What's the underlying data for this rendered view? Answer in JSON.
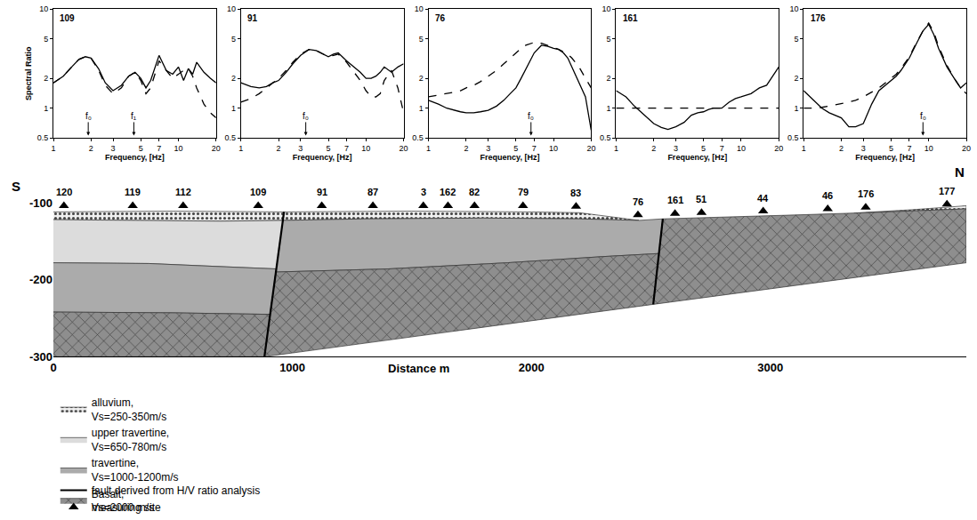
{
  "chart_data": [
    {
      "type": "line",
      "title": "109",
      "log": true,
      "grid": false,
      "xlabel": "Frequency, [Hz]",
      "ylabel": "Spectral Ratio",
      "xlim": [
        1,
        20
      ],
      "xticks": [
        1,
        2,
        3,
        5,
        7,
        10,
        20
      ],
      "ylim": [
        0.5,
        10
      ],
      "yticks": [
        0.5,
        1,
        2,
        5,
        10
      ],
      "x": [
        1,
        1.2,
        1.4,
        1.6,
        1.8,
        2,
        2.3,
        2.6,
        3,
        3.5,
        4,
        4.5,
        5,
        5.5,
        6,
        7,
        8,
        9,
        10,
        11,
        12,
        13,
        14,
        16,
        18,
        20
      ],
      "series": [
        {
          "line_style": "solid",
          "color": "#000000",
          "values": [
            1.8,
            2.1,
            2.6,
            3.1,
            3.3,
            3.2,
            2.5,
            1.8,
            1.5,
            1.7,
            2.1,
            2.3,
            2.0,
            1.6,
            1.9,
            3.4,
            2.4,
            2.2,
            2.6,
            1.9,
            2.5,
            2.2,
            2.9,
            2.3,
            2.0,
            1.8
          ]
        },
        {
          "line_style": "dashed",
          "color": "#000000",
          "values": [
            1.8,
            2.1,
            2.6,
            3.1,
            3.3,
            3.2,
            2.4,
            1.7,
            1.4,
            1.6,
            2.1,
            2.3,
            1.9,
            1.4,
            1.6,
            3.0,
            2.4,
            2.0,
            2.2,
            2.4,
            2.5,
            2.1,
            1.6,
            1.1,
            0.9,
            0.8
          ]
        }
      ],
      "annotations": [
        {
          "text": "f₀",
          "x": 1.9
        },
        {
          "text": "f₁",
          "x": 4.4
        }
      ]
    },
    {
      "type": "line",
      "title": "91",
      "log": true,
      "grid": false,
      "xlabel": "Frequency, [Hz]",
      "xlim": [
        1,
        20
      ],
      "xticks": [
        1,
        2,
        3,
        5,
        7,
        10,
        20
      ],
      "ylim": [
        0.5,
        10
      ],
      "yticks": [
        0.5,
        1,
        2,
        5,
        10
      ],
      "x": [
        1,
        1.2,
        1.4,
        1.6,
        1.8,
        2,
        2.3,
        2.6,
        3,
        3.5,
        4,
        4.5,
        5,
        5.5,
        6,
        7,
        8,
        9,
        10,
        11,
        12,
        13,
        14,
        16,
        18,
        20
      ],
      "series": [
        {
          "line_style": "solid",
          "color": "#000000",
          "values": [
            1.8,
            1.65,
            1.6,
            1.65,
            1.8,
            1.9,
            2.3,
            2.8,
            3.4,
            3.9,
            3.8,
            3.5,
            3.3,
            3.5,
            3.6,
            3.0,
            2.6,
            2.3,
            2.0,
            2.0,
            2.1,
            2.3,
            2.6,
            2.3,
            2.6,
            2.8
          ]
        },
        {
          "line_style": "dashed",
          "color": "#000000",
          "values": [
            1.15,
            1.25,
            1.4,
            1.6,
            1.8,
            2.0,
            2.4,
            2.9,
            3.5,
            3.9,
            3.8,
            3.5,
            3.3,
            3.4,
            3.5,
            2.9,
            2.3,
            1.9,
            1.5,
            1.3,
            1.3,
            1.4,
            1.9,
            2.4,
            1.6,
            0.9
          ]
        }
      ],
      "annotations": [
        {
          "text": "f₀",
          "x": 3.3
        }
      ]
    },
    {
      "type": "line",
      "title": "76",
      "log": true,
      "grid": false,
      "xlabel": "Frequency, [Hz]",
      "xlim": [
        1,
        20
      ],
      "xticks": [
        1,
        2,
        3,
        5,
        7,
        10,
        20
      ],
      "ylim": [
        0.5,
        10
      ],
      "yticks": [
        0.5,
        1,
        2,
        5,
        10
      ],
      "x": [
        1,
        1.2,
        1.4,
        1.6,
        1.8,
        2,
        2.3,
        2.6,
        3,
        3.5,
        4,
        4.5,
        5,
        5.5,
        6,
        7,
        8,
        9,
        10,
        11,
        12,
        13,
        14,
        16,
        18,
        20
      ],
      "series": [
        {
          "line_style": "solid",
          "color": "#000000",
          "values": [
            1.2,
            1.1,
            1.0,
            0.95,
            0.92,
            0.9,
            0.9,
            0.92,
            0.95,
            1.05,
            1.2,
            1.4,
            1.6,
            2.0,
            2.5,
            3.6,
            4.3,
            4.2,
            4.0,
            3.9,
            3.6,
            3.2,
            2.6,
            1.8,
            1.3,
            0.6
          ]
        },
        {
          "line_style": "dashed",
          "color": "#000000",
          "values": [
            1.3,
            1.35,
            1.4,
            1.45,
            1.5,
            1.6,
            1.7,
            1.85,
            2.1,
            2.4,
            2.8,
            3.2,
            3.6,
            4.0,
            4.3,
            4.6,
            4.5,
            4.3,
            4.1,
            3.9,
            3.7,
            3.5,
            3.2,
            2.6,
            2.0,
            1.6
          ]
        }
      ],
      "annotations": [
        {
          "text": "f₀",
          "x": 6.6
        }
      ]
    },
    {
      "type": "line",
      "title": "161",
      "log": true,
      "grid": false,
      "xlabel": "Frequency, [Hz]",
      "xlim": [
        1,
        20
      ],
      "xticks": [
        1,
        2,
        3,
        5,
        7,
        10,
        20
      ],
      "ylim": [
        0.5,
        10
      ],
      "yticks": [
        0.5,
        1,
        2,
        5,
        10
      ],
      "x": [
        1,
        1.2,
        1.4,
        1.6,
        1.8,
        2,
        2.3,
        2.6,
        3,
        3.5,
        4,
        4.5,
        5,
        5.5,
        6,
        7,
        8,
        9,
        10,
        11,
        12,
        13,
        14,
        16,
        18,
        20
      ],
      "series": [
        {
          "line_style": "solid",
          "color": "#000000",
          "values": [
            1.5,
            1.3,
            1.05,
            0.9,
            0.78,
            0.7,
            0.64,
            0.61,
            0.65,
            0.72,
            0.85,
            0.9,
            0.92,
            0.97,
            1.0,
            1.0,
            1.15,
            1.25,
            1.3,
            1.35,
            1.4,
            1.5,
            1.6,
            1.7,
            2.1,
            2.6
          ]
        },
        {
          "line_style": "dashed",
          "color": "#000000",
          "values": [
            1,
            1,
            1,
            1,
            1,
            1,
            1,
            1,
            1,
            1,
            1,
            1,
            1,
            1,
            1,
            1,
            1,
            1,
            1,
            1,
            1,
            1,
            1,
            1,
            1,
            1
          ]
        }
      ]
    },
    {
      "type": "line",
      "title": "176",
      "log": true,
      "grid": false,
      "xlabel": "Frequency, [Hz]",
      "xlim": [
        1,
        20
      ],
      "xticks": [
        1,
        2,
        3,
        5,
        7,
        10,
        20
      ],
      "ylim": [
        0.5,
        10
      ],
      "yticks": [
        0.5,
        1,
        2,
        5,
        10
      ],
      "x": [
        1,
        1.2,
        1.4,
        1.6,
        1.8,
        2,
        2.3,
        2.6,
        3,
        3.5,
        4,
        4.5,
        5,
        5.5,
        6,
        7,
        8,
        9,
        10,
        11,
        12,
        13,
        14,
        16,
        18,
        20
      ],
      "series": [
        {
          "line_style": "solid",
          "color": "#000000",
          "values": [
            1.5,
            1.2,
            1.0,
            0.9,
            0.85,
            0.8,
            0.65,
            0.65,
            0.7,
            1.1,
            1.5,
            1.7,
            1.9,
            2.1,
            2.4,
            3.2,
            4.5,
            6.0,
            7.0,
            5.5,
            4.0,
            3.2,
            2.6,
            2.0,
            1.6,
            1.8
          ]
        },
        {
          "line_style": "dashed",
          "color": "#000000",
          "values": [
            1.0,
            1.0,
            1.02,
            1.05,
            1.08,
            1.1,
            1.15,
            1.2,
            1.3,
            1.45,
            1.6,
            1.8,
            2.0,
            2.2,
            2.5,
            3.3,
            4.6,
            6.0,
            7.2,
            5.8,
            4.2,
            3.3,
            2.7,
            2.0,
            1.6,
            1.4
          ]
        }
      ],
      "annotations": [
        {
          "text": "f₀",
          "x": 9
        }
      ]
    },
    {
      "type": "area",
      "grid": false,
      "legend": "bottom",
      "xlabel": "Distance m",
      "xlim": [
        0,
        3820
      ],
      "xticks": [
        0,
        1000,
        2000,
        3000
      ],
      "ylim": [
        -300,
        -100
      ],
      "yticks": [
        -100,
        -200,
        -300
      ],
      "annotations": [
        {
          "text": "S",
          "x": 0
        },
        {
          "text": "N",
          "x": 3820
        }
      ],
      "series": [
        {
          "name": "alluvium, Vs=250-350m/s",
          "type": "area",
          "color": "#f0f0f0",
          "marker": "dots",
          "x": [
            0,
            500,
            963,
            961,
            700,
            300,
            0,
            null,
            963,
            1500,
            2000,
            2200,
            2450,
            2200,
            1800,
            1300,
            961,
            null,
            3350,
            3600,
            3820,
            3820,
            3600,
            3400
          ],
          "values": [
            -112,
            -111,
            -112,
            -123,
            -124,
            -123,
            -122,
            null,
            -112,
            -111,
            -112,
            -113,
            -123,
            -121,
            -120,
            -121,
            -123,
            null,
            -113.5,
            -109,
            -104,
            -108,
            -110.5,
            -113
          ]
        },
        {
          "name": "upper travertine, Vs=650-780m/s",
          "type": "area",
          "color": "#dcdcdc",
          "x": [
            0,
            300,
            700,
            961,
            933,
            700,
            400,
            0
          ],
          "values": [
            -122,
            -123,
            -124,
            -123,
            -186,
            -183,
            -179,
            -178
          ]
        },
        {
          "name": "travertine, Vs=1000-1200m/s",
          "type": "area",
          "color": "#ababab",
          "x": [
            0,
            400,
            700,
            933,
            907,
            500,
            0,
            null,
            961,
            1300,
            1800,
            2200,
            2450,
            2550,
            2534,
            2300,
            1900,
            1400,
            931
          ],
          "values": [
            -178,
            -179,
            -183,
            -186,
            -245,
            -243,
            -242,
            null,
            -123,
            -121,
            -120,
            -121,
            -123,
            -121,
            -166,
            -170,
            -178,
            -186,
            -190
          ]
        },
        {
          "name": "Basalt, Vs=2000 m/s",
          "type": "area",
          "color": "#8e8e8e",
          "marker": "v",
          "x": [
            0,
            500,
            907,
            931,
            1400,
            1900,
            2300,
            2534,
            2550,
            2800,
            3100,
            3400,
            3820,
            3820,
            2510,
            883,
            0
          ],
          "values": [
            -242,
            -243,
            -245,
            -190,
            -186,
            -178,
            -170,
            -166,
            -121,
            -119,
            -116,
            -113,
            -108,
            -178,
            -232,
            -300,
            -300
          ]
        },
        {
          "name": "fault derived from H/V ratio analysis",
          "type": "line",
          "color": "#000000",
          "x": [
            965,
            883,
            null,
            2550,
            2510
          ],
          "values": [
            -112,
            -300,
            null,
            -121,
            -232
          ]
        },
        {
          "name": "measuring site",
          "type": "scatter",
          "color": "#000000",
          "marker": "triangle-up",
          "labels": [
            "120",
            "119",
            "112",
            "109",
            "91",
            "87",
            "3",
            "162",
            "82",
            "79",
            "83",
            "76",
            "161",
            "51",
            "44",
            "46",
            "176",
            "177"
          ],
          "x": [
            44,
            332,
            543,
            857,
            1123,
            1337,
            1548,
            1651,
            1762,
            1965,
            2187,
            2446,
            2601,
            2712,
            2970,
            3240,
            3399,
            3739
          ],
          "values": [
            -104,
            -104,
            -104,
            -104,
            -104,
            -104,
            -104,
            -104,
            -104,
            -104,
            -105,
            -116,
            -114,
            -113,
            -111,
            -108,
            -106,
            -102
          ]
        }
      ]
    }
  ]
}
